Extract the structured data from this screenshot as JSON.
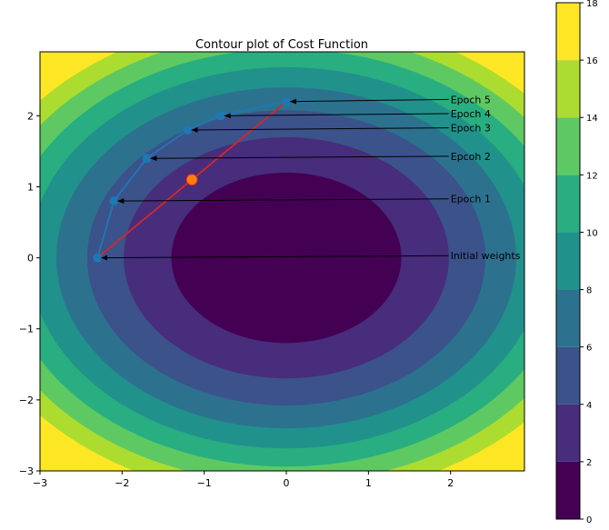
{
  "chart_data": {
    "type": "contour",
    "title": "Contour plot of Cost Function",
    "xlim": [
      -3,
      2.9
    ],
    "ylim": [
      -3,
      2.9
    ],
    "x_ticks": [
      -3,
      -2,
      -1,
      0,
      1,
      2
    ],
    "y_ticks": [
      -3,
      -2,
      -1,
      0,
      1,
      2
    ],
    "x_tick_labels": [
      "−3",
      "−2",
      "−1",
      "0",
      "1",
      "2"
    ],
    "y_tick_labels": [
      "−3",
      "−2",
      "−1",
      "0",
      "1",
      "2"
    ],
    "contour_levels": [
      0,
      2,
      4,
      6,
      8,
      10,
      12,
      14,
      16,
      18
    ],
    "level_colors": [
      "#440154",
      "#472d7b",
      "#3b528b",
      "#2c728e",
      "#21918c",
      "#28ae80",
      "#5ec962",
      "#addc30",
      "#fde725"
    ],
    "colorbar": {
      "ticks": [
        0,
        2,
        4,
        6,
        8,
        10,
        12,
        14,
        16,
        18
      ],
      "tick_labels": [
        "0",
        "2",
        "4",
        "6",
        "8",
        "10",
        "12",
        "14",
        "16",
        "18"
      ]
    },
    "cost_ellipse": {
      "center": [
        0,
        0
      ],
      "x_radius_at_level_2": 1.4,
      "y_radius_at_level_2": 1.2
    },
    "path_points": [
      {
        "x": -2.3,
        "y": 0.0
      },
      {
        "x": -2.1,
        "y": 0.8
      },
      {
        "x": -1.7,
        "y": 1.4
      },
      {
        "x": -1.2,
        "y": 1.8
      },
      {
        "x": -0.8,
        "y": 2.0
      },
      {
        "x": 0.0,
        "y": 2.2
      }
    ],
    "path_color": "#1f77b4",
    "direct_line": {
      "from": [
        -2.3,
        0.0
      ],
      "to": [
        0.0,
        2.2
      ],
      "color": "#d62728"
    },
    "highlight_point": {
      "x": -1.15,
      "y": 1.1,
      "color": "#ff7f0e"
    },
    "annotations": [
      {
        "text": "Initial weights",
        "x": 2.0,
        "y": 0.03,
        "points_to": [
          -2.3,
          0.0
        ]
      },
      {
        "text": "Epoch 1",
        "x": 2.0,
        "y": 0.83,
        "points_to": [
          -2.1,
          0.8
        ]
      },
      {
        "text": "Epcoh 2",
        "x": 2.0,
        "y": 1.43,
        "points_to": [
          -1.7,
          1.4
        ]
      },
      {
        "text": "Epoch 3",
        "x": 2.0,
        "y": 1.83,
        "points_to": [
          -1.2,
          1.8
        ]
      },
      {
        "text": "Epoch 4",
        "x": 2.0,
        "y": 2.03,
        "points_to": [
          -0.8,
          2.0
        ]
      },
      {
        "text": "Epoch 5",
        "x": 2.0,
        "y": 2.23,
        "points_to": [
          0.0,
          2.2
        ]
      }
    ]
  }
}
